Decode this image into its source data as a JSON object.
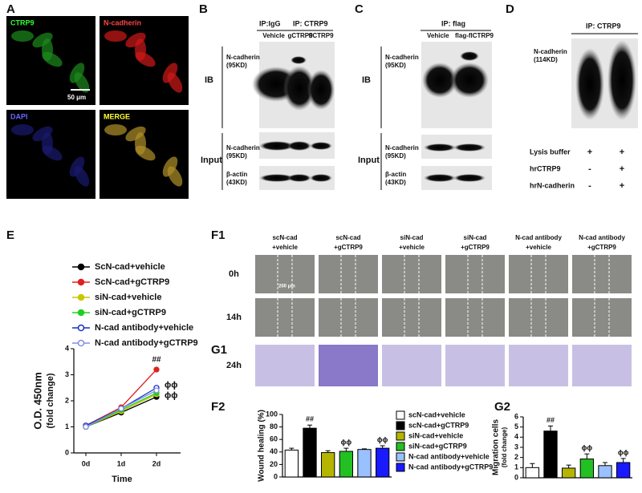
{
  "panels": {
    "A": {
      "letter": "A",
      "labels": [
        "CTRP9",
        "N-cadherin",
        "DAPI",
        "MERGE"
      ],
      "scale_bar": "50 μm"
    },
    "B": {
      "letter": "B",
      "ip_groups": [
        "IP:IgG",
        "IP: CTRP9"
      ],
      "lanes": [
        "Vehicle",
        "gCTRP9",
        "flCTRP9"
      ],
      "sections": [
        "IB",
        "Input"
      ],
      "bands": [
        [
          "N-cadherin",
          "(95KD)"
        ],
        [
          "N-cadherin",
          "(95KD)"
        ],
        [
          "β-actin",
          "(43KD)"
        ]
      ]
    },
    "C": {
      "letter": "C",
      "ip": "IP: flag",
      "lanes": [
        "Vehicle",
        "flag-flCTRP9"
      ],
      "sections": [
        "IB",
        "Input"
      ],
      "bands": [
        [
          "N-cadherin",
          "(95KD)"
        ],
        [
          "N-cadherin",
          "(95KD)"
        ],
        [
          "β-actin",
          "(43KD)"
        ]
      ]
    },
    "D": {
      "letter": "D",
      "ip": "IP: CTRP9",
      "band": [
        "N-cadherin",
        "(114KD)"
      ],
      "rows": [
        {
          "label": "Lysis buffer",
          "marks": [
            "+",
            "+"
          ]
        },
        {
          "label": "hrCTRP9",
          "marks": [
            "-",
            "+"
          ]
        },
        {
          "label": "hrN-cadherin",
          "marks": [
            "-",
            "+"
          ]
        }
      ]
    },
    "F1": {
      "letter": "F1",
      "columns": [
        [
          "scN-cad",
          "+vehicle"
        ],
        [
          "scN-cad",
          "+gCTRP9"
        ],
        [
          "siN-cad",
          "+vehicle"
        ],
        [
          "siN-cad",
          "+gCTRP9"
        ],
        [
          "N-cad antibody",
          "+vehicle"
        ],
        [
          "N-cad antibody",
          "+gCTRP9"
        ]
      ],
      "rows": [
        "0h",
        "14h"
      ],
      "scale_bar": "200 μm"
    },
    "G1": {
      "letter": "G1",
      "row": "24h"
    }
  },
  "chart_data": [
    {
      "type": "line",
      "letter": "E",
      "x_label": "Time",
      "y_label": [
        "O.D. 450nm",
        "(fold change)"
      ],
      "categories": [
        "0d",
        "1d",
        "2d"
      ],
      "ylim": [
        0,
        4
      ],
      "yticks": [
        0,
        1,
        2,
        3,
        4
      ],
      "series": [
        {
          "name": "ScN-cad+vehicle",
          "color": "#000000",
          "marker": "filled",
          "values": [
            1.0,
            1.55,
            2.15
          ],
          "end_label": null
        },
        {
          "name": "ScN-cad+gCTRP9",
          "color": "#e02020",
          "marker": "filled",
          "values": [
            1.05,
            1.75,
            3.2
          ],
          "end_label": "##"
        },
        {
          "name": "siN-cad+vehicle",
          "color": "#c8c800",
          "marker": "filled",
          "values": [
            1.0,
            1.6,
            2.25
          ],
          "end_label": null
        },
        {
          "name": "siN-cad+gCTRP9",
          "color": "#20d020",
          "marker": "filled",
          "values": [
            1.0,
            1.65,
            2.3
          ],
          "end_label": null
        },
        {
          "name": "N-cad antibody+vehicle",
          "color": "#1a2fc0",
          "marker": "open",
          "values": [
            1.05,
            1.7,
            2.5
          ],
          "end_label": "ϕϕ"
        },
        {
          "name": "N-cad antibody+gCTRP9",
          "color": "#7f8fe8",
          "marker": "open",
          "values": [
            1.0,
            1.7,
            2.4
          ],
          "end_label": "ϕϕ"
        }
      ]
    },
    {
      "type": "bar",
      "letter": "F2",
      "y_label": [
        "Wound healing (%)"
      ],
      "categories": [
        "scN-cad+vehicle",
        "scN-cad+gCTRP9",
        "siN-cad+vehicle",
        "siN-cad+gCTRP9",
        "N-cad antibody+vehicle",
        "N-cad antibody+gCTRP9"
      ],
      "colors": [
        "#ffffff",
        "#000000",
        "#b5b500",
        "#22c022",
        "#99c0ff",
        "#1a1aff"
      ],
      "values": [
        43,
        78,
        39,
        41,
        44,
        46
      ],
      "errors": [
        3,
        5,
        3,
        5,
        1,
        4
      ],
      "value_annotations": [
        null,
        "##",
        null,
        "ϕϕ",
        null,
        "ϕϕ"
      ],
      "ylim": [
        0,
        100
      ],
      "yticks": [
        0,
        20,
        40,
        60,
        80,
        100
      ]
    },
    {
      "type": "bar",
      "letter": "G2",
      "y_label": [
        "Migration cells",
        "(fold change)"
      ],
      "colors": [
        "#ffffff",
        "#000000",
        "#b5b500",
        "#22c022",
        "#99c0ff",
        "#1a1aff"
      ],
      "values": [
        1.0,
        4.6,
        0.95,
        1.85,
        1.2,
        1.5
      ],
      "errors": [
        0.4,
        0.5,
        0.3,
        0.5,
        0.3,
        0.4
      ],
      "value_annotations": [
        null,
        "##",
        null,
        "ϕϕ",
        null,
        "ϕϕ"
      ],
      "ylim": [
        0,
        6
      ],
      "yticks": [
        0,
        1,
        2,
        3,
        4,
        5,
        6
      ]
    }
  ]
}
